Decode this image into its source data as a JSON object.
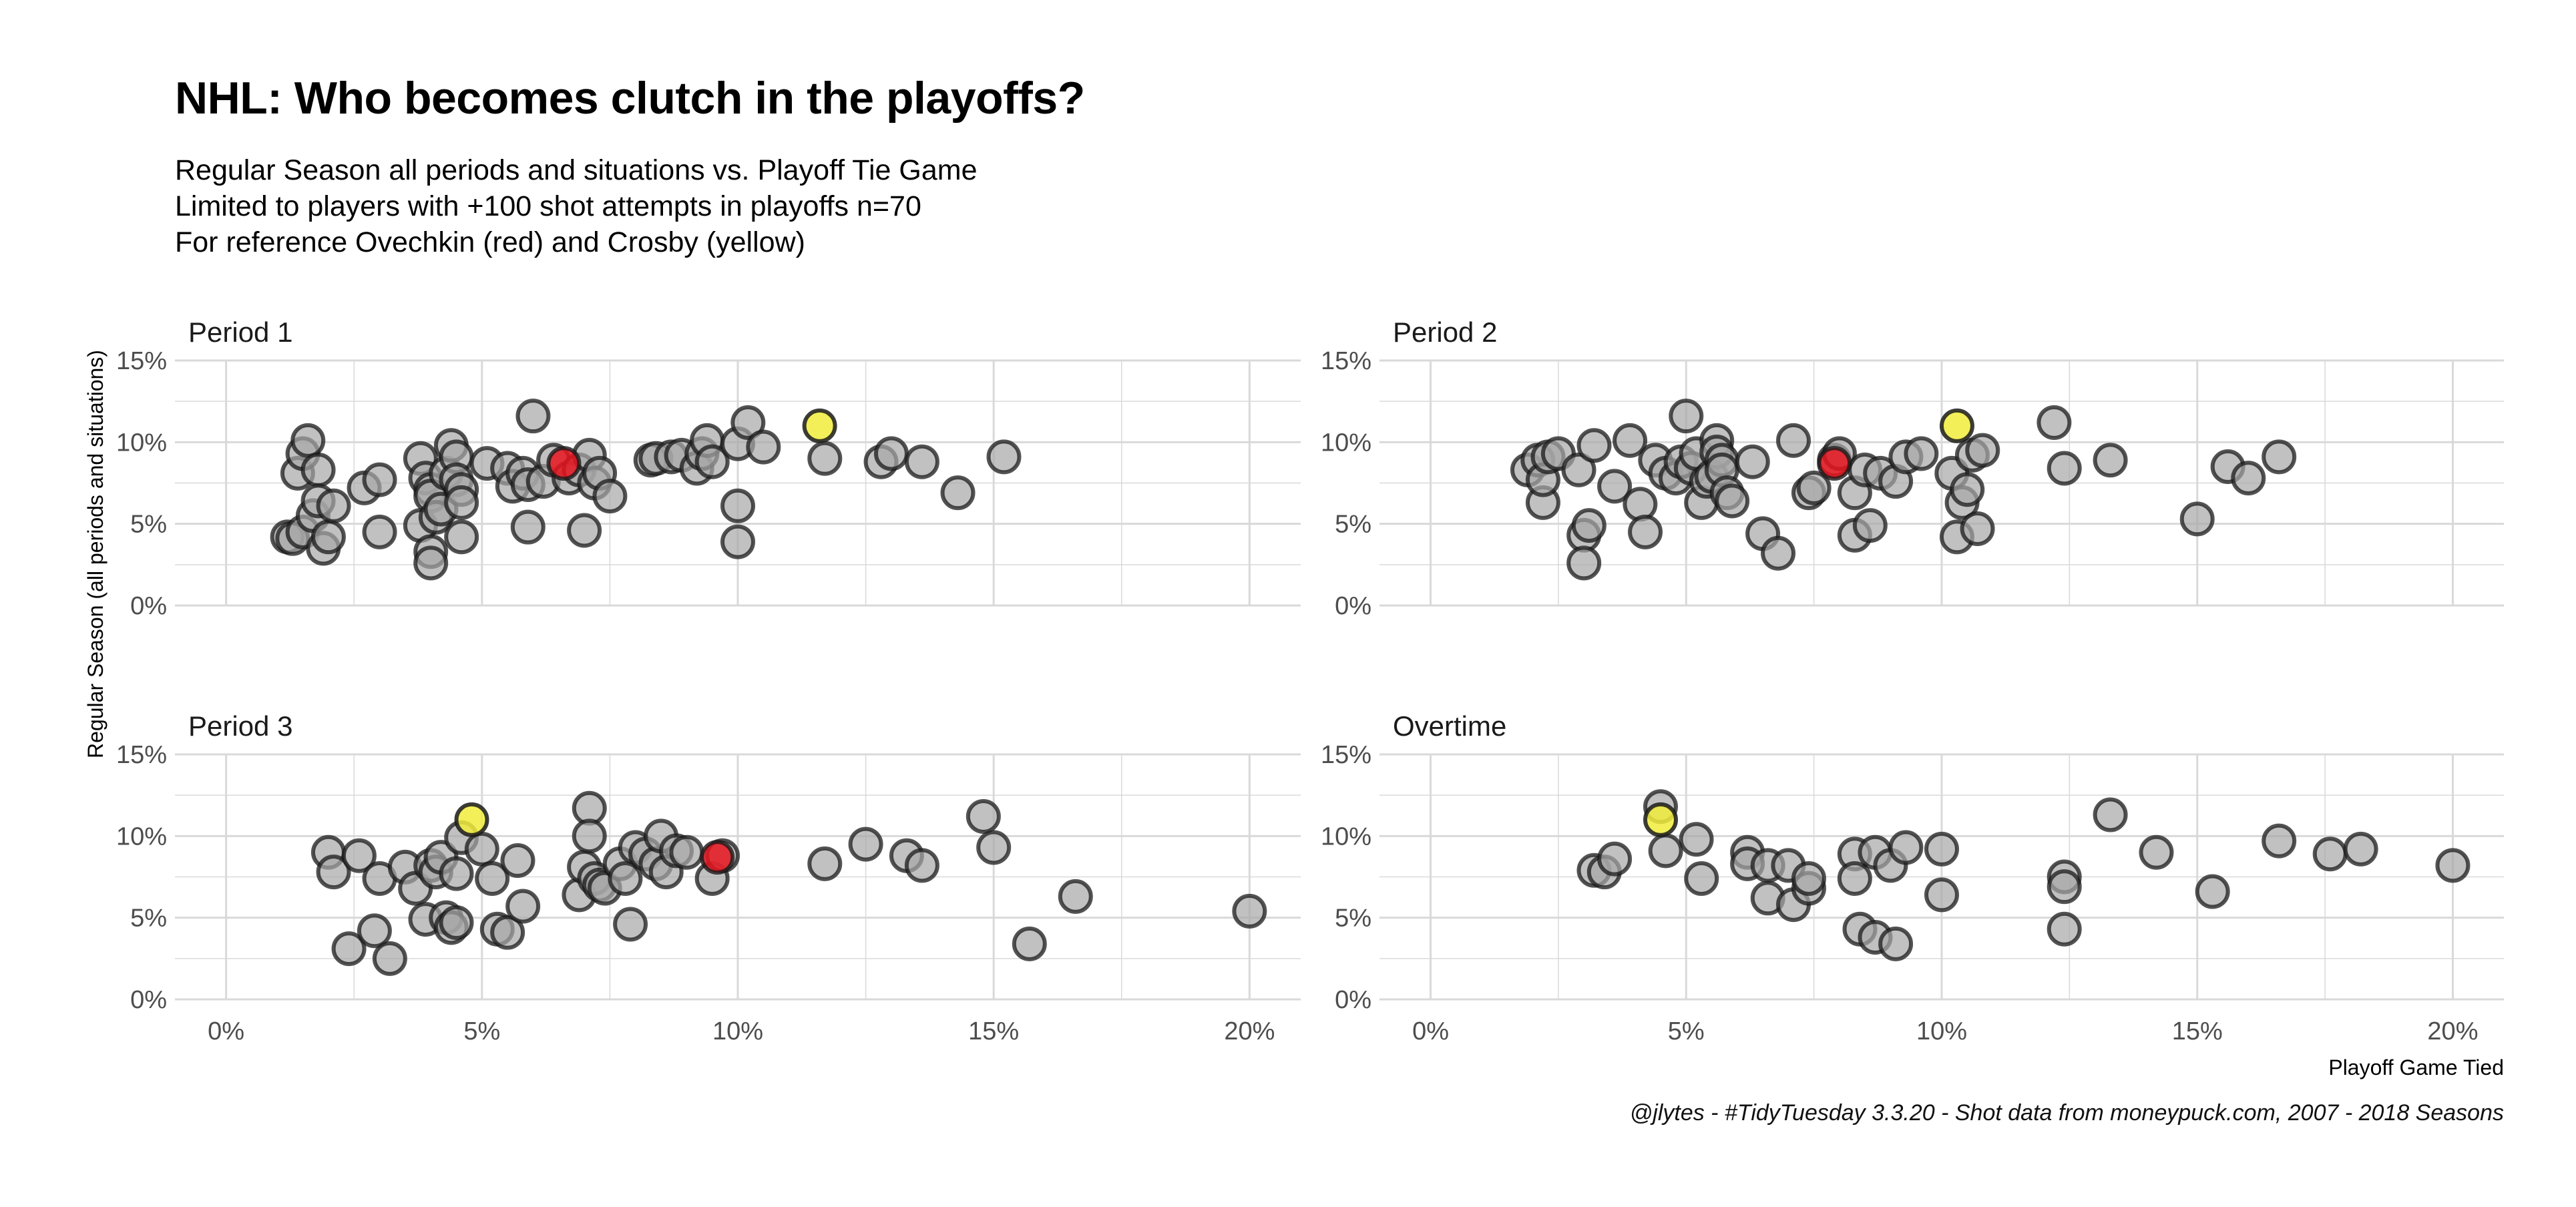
{
  "title": "NHL: Who becomes clutch in the playoffs?",
  "subtitle": [
    "Regular Season all periods and situations vs. Playoff Tie Game",
    "Limited to players with +100 shot attempts in playoffs n=70",
    "For reference Ovechkin (red) and Crosby (yellow)"
  ],
  "caption": "@jlytes - #TidyTuesday 3.3.20 - Shot data from moneypuck.com, 2007 - 2018 Seasons",
  "colors": {
    "other": "#a6a6a6",
    "ovechkin": "#e8141e",
    "crosby": "#f0ec3c",
    "outline": "#1a1a1a",
    "grid": "#d9d9d9"
  },
  "chart_data": {
    "type": "scatter",
    "xlabel": "Playoff Game Tied",
    "ylabel": "Regular Season (all periods and situations)",
    "xlim": [
      -0.01,
      0.21
    ],
    "ylim": [
      0,
      0.15
    ],
    "x_ticks": [
      0,
      0.05,
      0.1,
      0.15,
      0.2
    ],
    "x_tick_labels": [
      "0%",
      "5%",
      "10%",
      "15%",
      "20%"
    ],
    "y_ticks": [
      0,
      0.05,
      0.1,
      0.15
    ],
    "y_tick_labels": [
      "0%",
      "5%",
      "10%",
      "15%"
    ],
    "grid": true,
    "panels": [
      {
        "name": "Period  1",
        "others": [
          [
            0.012,
            0.042
          ],
          [
            0.013,
            0.041
          ],
          [
            0.015,
            0.045
          ],
          [
            0.014,
            0.081
          ],
          [
            0.015,
            0.093
          ],
          [
            0.016,
            0.101
          ],
          [
            0.018,
            0.083
          ],
          [
            0.017,
            0.055
          ],
          [
            0.018,
            0.064
          ],
          [
            0.019,
            0.035
          ],
          [
            0.02,
            0.042
          ],
          [
            0.021,
            0.061
          ],
          [
            0.027,
            0.072
          ],
          [
            0.03,
            0.077
          ],
          [
            0.03,
            0.045
          ],
          [
            0.038,
            0.049
          ],
          [
            0.038,
            0.09
          ],
          [
            0.039,
            0.078
          ],
          [
            0.04,
            0.071
          ],
          [
            0.04,
            0.067
          ],
          [
            0.04,
            0.033
          ],
          [
            0.04,
            0.026
          ],
          [
            0.041,
            0.054
          ],
          [
            0.042,
            0.059
          ],
          [
            0.043,
            0.081
          ],
          [
            0.044,
            0.098
          ],
          [
            0.045,
            0.091
          ],
          [
            0.045,
            0.077
          ],
          [
            0.046,
            0.071
          ],
          [
            0.046,
            0.063
          ],
          [
            0.046,
            0.042
          ],
          [
            0.051,
            0.087
          ],
          [
            0.055,
            0.084
          ],
          [
            0.056,
            0.073
          ],
          [
            0.058,
            0.081
          ],
          [
            0.059,
            0.074
          ],
          [
            0.059,
            0.048
          ],
          [
            0.06,
            0.116
          ],
          [
            0.062,
            0.076
          ],
          [
            0.064,
            0.089
          ],
          [
            0.067,
            0.078
          ],
          [
            0.069,
            0.083
          ],
          [
            0.07,
            0.046
          ],
          [
            0.071,
            0.092
          ],
          [
            0.072,
            0.075
          ],
          [
            0.073,
            0.081
          ],
          [
            0.075,
            0.067
          ],
          [
            0.083,
            0.089
          ],
          [
            0.084,
            0.09
          ],
          [
            0.087,
            0.091
          ],
          [
            0.089,
            0.092
          ],
          [
            0.092,
            0.084
          ],
          [
            0.093,
            0.093
          ],
          [
            0.094,
            0.101
          ],
          [
            0.095,
            0.088
          ],
          [
            0.1,
            0.099
          ],
          [
            0.1,
            0.061
          ],
          [
            0.1,
            0.039
          ],
          [
            0.102,
            0.112
          ],
          [
            0.105,
            0.097
          ],
          [
            0.117,
            0.09
          ],
          [
            0.128,
            0.088
          ],
          [
            0.13,
            0.093
          ],
          [
            0.136,
            0.088
          ],
          [
            0.143,
            0.069
          ],
          [
            0.152,
            0.091
          ]
        ],
        "ovechkin": [
          0.066,
          0.087
        ],
        "crosby": [
          0.116,
          0.11
        ]
      },
      {
        "name": "Period  2",
        "others": [
          [
            0.019,
            0.083
          ],
          [
            0.021,
            0.089
          ],
          [
            0.022,
            0.063
          ],
          [
            0.022,
            0.077
          ],
          [
            0.023,
            0.091
          ],
          [
            0.025,
            0.093
          ],
          [
            0.029,
            0.083
          ],
          [
            0.03,
            0.043
          ],
          [
            0.03,
            0.026
          ],
          [
            0.031,
            0.049
          ],
          [
            0.032,
            0.098
          ],
          [
            0.036,
            0.073
          ],
          [
            0.039,
            0.101
          ],
          [
            0.041,
            0.062
          ],
          [
            0.042,
            0.045
          ],
          [
            0.044,
            0.089
          ],
          [
            0.046,
            0.081
          ],
          [
            0.048,
            0.078
          ],
          [
            0.049,
            0.088
          ],
          [
            0.05,
            0.116
          ],
          [
            0.051,
            0.084
          ],
          [
            0.052,
            0.093
          ],
          [
            0.053,
            0.063
          ],
          [
            0.054,
            0.076
          ],
          [
            0.055,
            0.079
          ],
          [
            0.056,
            0.101
          ],
          [
            0.056,
            0.094
          ],
          [
            0.057,
            0.089
          ],
          [
            0.057,
            0.083
          ],
          [
            0.058,
            0.069
          ],
          [
            0.059,
            0.064
          ],
          [
            0.063,
            0.088
          ],
          [
            0.065,
            0.044
          ],
          [
            0.068,
            0.032
          ],
          [
            0.071,
            0.101
          ],
          [
            0.074,
            0.069
          ],
          [
            0.075,
            0.072
          ],
          [
            0.079,
            0.089
          ],
          [
            0.08,
            0.093
          ],
          [
            0.083,
            0.069
          ],
          [
            0.083,
            0.043
          ],
          [
            0.085,
            0.083
          ],
          [
            0.086,
            0.049
          ],
          [
            0.088,
            0.081
          ],
          [
            0.091,
            0.076
          ],
          [
            0.093,
            0.091
          ],
          [
            0.096,
            0.093
          ],
          [
            0.102,
            0.081
          ],
          [
            0.103,
            0.042
          ],
          [
            0.104,
            0.063
          ],
          [
            0.105,
            0.071
          ],
          [
            0.106,
            0.092
          ],
          [
            0.107,
            0.047
          ],
          [
            0.108,
            0.095
          ],
          [
            0.122,
            0.112
          ],
          [
            0.124,
            0.084
          ],
          [
            0.133,
            0.089
          ],
          [
            0.15,
            0.053
          ],
          [
            0.156,
            0.085
          ],
          [
            0.16,
            0.078
          ],
          [
            0.166,
            0.091
          ]
        ],
        "ovechkin": [
          0.079,
          0.087
        ],
        "crosby": [
          0.103,
          0.11
        ]
      },
      {
        "name": "Period  3",
        "others": [
          [
            0.02,
            0.09
          ],
          [
            0.021,
            0.078
          ],
          [
            0.024,
            0.031
          ],
          [
            0.026,
            0.088
          ],
          [
            0.029,
            0.042
          ],
          [
            0.03,
            0.074
          ],
          [
            0.032,
            0.025
          ],
          [
            0.035,
            0.081
          ],
          [
            0.037,
            0.068
          ],
          [
            0.039,
            0.049
          ],
          [
            0.04,
            0.082
          ],
          [
            0.041,
            0.078
          ],
          [
            0.042,
            0.087
          ],
          [
            0.043,
            0.05
          ],
          [
            0.044,
            0.044
          ],
          [
            0.045,
            0.077
          ],
          [
            0.045,
            0.047
          ],
          [
            0.046,
            0.099
          ],
          [
            0.05,
            0.092
          ],
          [
            0.052,
            0.074
          ],
          [
            0.053,
            0.043
          ],
          [
            0.055,
            0.041
          ],
          [
            0.057,
            0.085
          ],
          [
            0.058,
            0.057
          ],
          [
            0.069,
            0.064
          ],
          [
            0.07,
            0.081
          ],
          [
            0.071,
            0.117
          ],
          [
            0.071,
            0.1
          ],
          [
            0.072,
            0.074
          ],
          [
            0.073,
            0.07
          ],
          [
            0.074,
            0.068
          ],
          [
            0.077,
            0.083
          ],
          [
            0.078,
            0.074
          ],
          [
            0.079,
            0.046
          ],
          [
            0.08,
            0.093
          ],
          [
            0.082,
            0.089
          ],
          [
            0.084,
            0.083
          ],
          [
            0.085,
            0.1
          ],
          [
            0.086,
            0.078
          ],
          [
            0.088,
            0.091
          ],
          [
            0.09,
            0.09
          ],
          [
            0.095,
            0.074
          ],
          [
            0.097,
            0.088
          ],
          [
            0.117,
            0.083
          ],
          [
            0.125,
            0.095
          ],
          [
            0.133,
            0.088
          ],
          [
            0.136,
            0.082
          ],
          [
            0.148,
            0.112
          ],
          [
            0.15,
            0.093
          ],
          [
            0.157,
            0.034
          ],
          [
            0.166,
            0.063
          ],
          [
            0.2,
            0.054
          ]
        ],
        "ovechkin": [
          0.096,
          0.087
        ],
        "crosby": [
          0.048,
          0.11
        ]
      },
      {
        "name": "Overtime",
        "others": [
          [
            0.032,
            0.079
          ],
          [
            0.034,
            0.078
          ],
          [
            0.036,
            0.086
          ],
          [
            0.045,
            0.118
          ],
          [
            0.046,
            0.091
          ],
          [
            0.052,
            0.098
          ],
          [
            0.053,
            0.074
          ],
          [
            0.062,
            0.09
          ],
          [
            0.062,
            0.083
          ],
          [
            0.066,
            0.062
          ],
          [
            0.066,
            0.082
          ],
          [
            0.07,
            0.082
          ],
          [
            0.071,
            0.058
          ],
          [
            0.074,
            0.068
          ],
          [
            0.074,
            0.074
          ],
          [
            0.083,
            0.089
          ],
          [
            0.083,
            0.074
          ],
          [
            0.084,
            0.043
          ],
          [
            0.087,
            0.09
          ],
          [
            0.087,
            0.038
          ],
          [
            0.09,
            0.082
          ],
          [
            0.091,
            0.034
          ],
          [
            0.093,
            0.093
          ],
          [
            0.1,
            0.092
          ],
          [
            0.1,
            0.064
          ],
          [
            0.124,
            0.075
          ],
          [
            0.124,
            0.069
          ],
          [
            0.124,
            0.043
          ],
          [
            0.133,
            0.113
          ],
          [
            0.142,
            0.09
          ],
          [
            0.153,
            0.066
          ],
          [
            0.166,
            0.097
          ],
          [
            0.176,
            0.089
          ],
          [
            0.182,
            0.092
          ],
          [
            0.2,
            0.082
          ]
        ],
        "crosby": [
          0.045,
          0.11
        ]
      }
    ]
  }
}
